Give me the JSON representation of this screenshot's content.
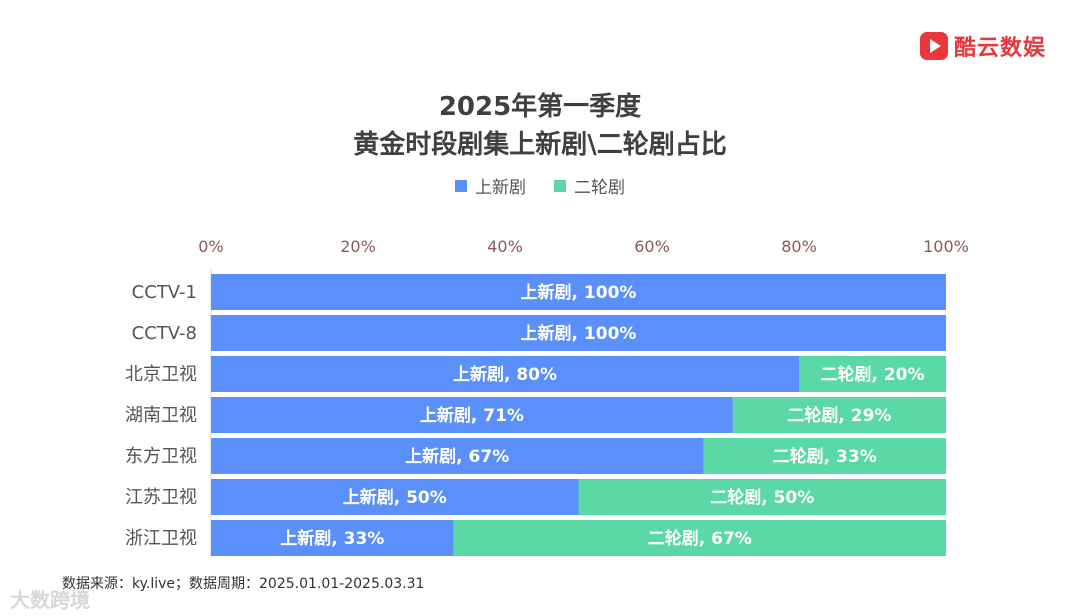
{
  "brand": {
    "name": "酷云数娱"
  },
  "chart_title": {
    "line1": "2025年第一季度",
    "line2": "黄金时段剧集上新剧\\二轮剧占比"
  },
  "source": "数据来源：ky.live；数据周期：2025.01.01-2025.03.31",
  "watermark": "大数跨境",
  "colors": {
    "series0": "#5b8ff9",
    "series1": "#5ad8a6",
    "axis_text": "#8a5a5a",
    "category_text": "#555555",
    "bar_label": "#ffffff"
  },
  "chart_data": {
    "type": "bar",
    "orientation": "horizontal",
    "stacked": true,
    "percent": true,
    "title": "2025年第一季度 黄金时段剧集上新剧\\二轮剧占比",
    "xlabel": "",
    "ylabel": "",
    "xlim": [
      0,
      100
    ],
    "x_ticks": [
      "0%",
      "20%",
      "40%",
      "60%",
      "80%",
      "100%"
    ],
    "x_tick_values": [
      0,
      20,
      40,
      60,
      80,
      100
    ],
    "legend_position": "top",
    "grid": false,
    "categories": [
      "CCTV-1",
      "CCTV-8",
      "北京卫视",
      "湖南卫视",
      "东方卫视",
      "江苏卫视",
      "浙江卫视"
    ],
    "series": [
      {
        "name": "上新剧",
        "values": [
          100,
          100,
          80,
          71,
          67,
          50,
          33
        ],
        "labels": [
          "上新剧, 100%",
          "上新剧, 100%",
          "上新剧, 80%",
          "上新剧, 71%",
          "上新剧, 67%",
          "上新剧, 50%",
          "上新剧, 33%"
        ]
      },
      {
        "name": "二轮剧",
        "values": [
          0,
          0,
          20,
          29,
          33,
          50,
          67
        ],
        "labels": [
          "",
          "",
          "二轮剧, 20%",
          "二轮剧, 29%",
          "二轮剧, 33%",
          "二轮剧, 50%",
          "二轮剧, 67%"
        ]
      }
    ]
  }
}
